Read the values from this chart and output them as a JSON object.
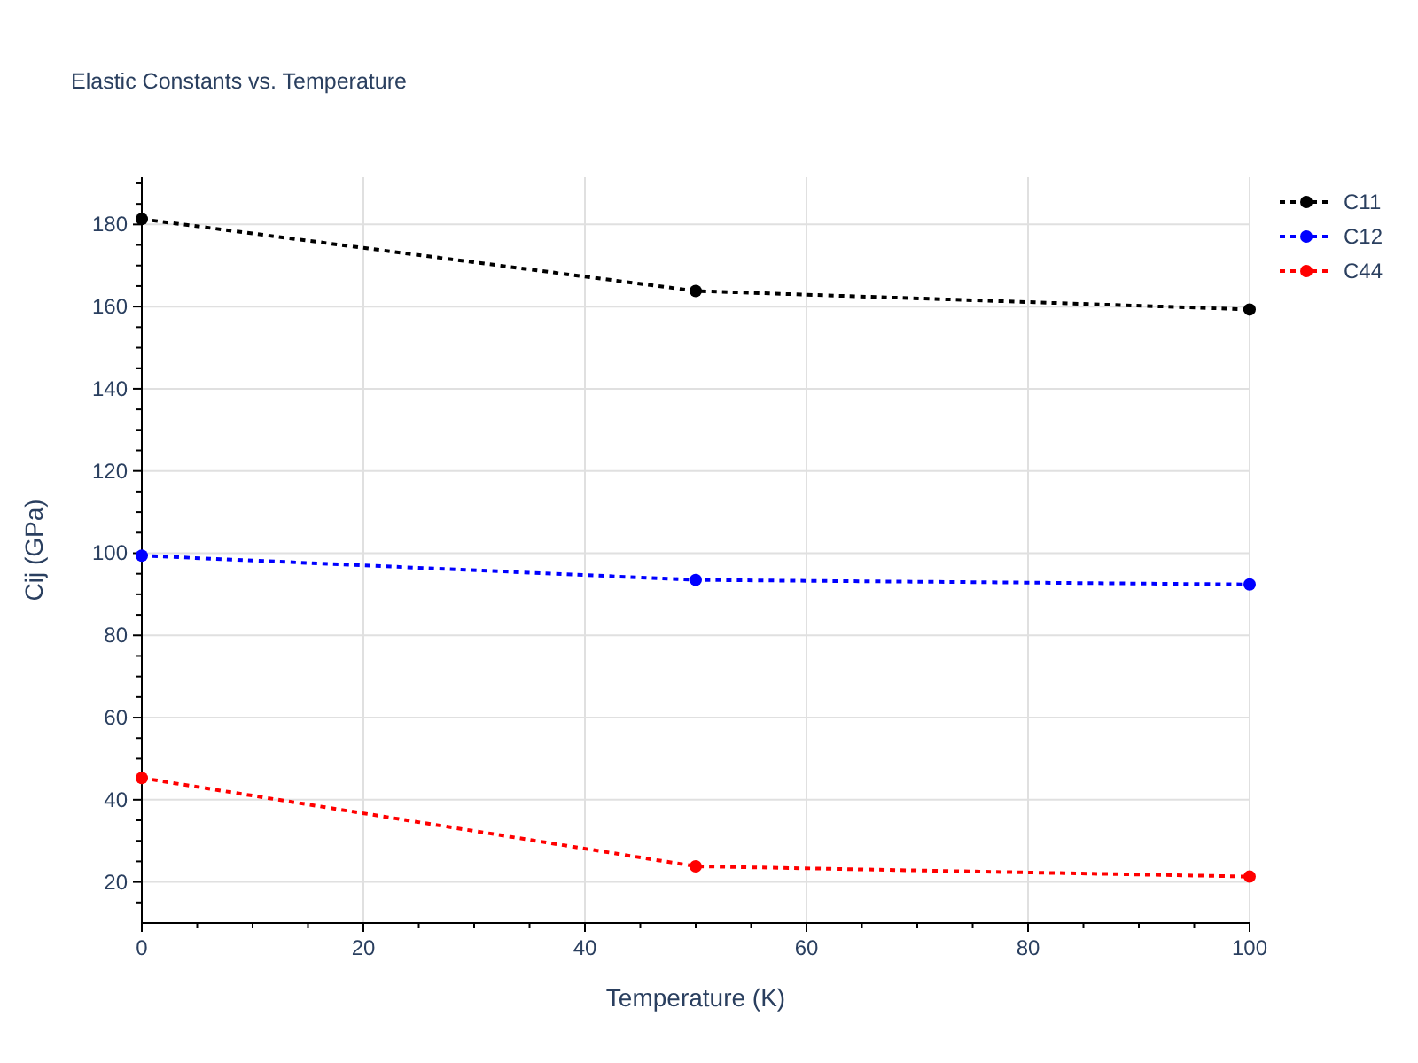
{
  "chart_data": {
    "type": "line",
    "title": "Elastic Constants vs. Temperature",
    "xlabel": "Temperature (K)",
    "ylabel": "Cij (GPa)",
    "x": [
      0,
      50,
      100
    ],
    "series": [
      {
        "name": "C11",
        "color": "#000000",
        "values": [
          181.3,
          163.8,
          159.3
        ]
      },
      {
        "name": "C12",
        "color": "#0000ff",
        "values": [
          99.4,
          93.5,
          92.4
        ]
      },
      {
        "name": "C44",
        "color": "#ff0000",
        "values": [
          45.3,
          23.8,
          21.3
        ]
      }
    ],
    "xlim": [
      0,
      100
    ],
    "xticks": [
      0,
      {
        "value": 5,
        "label": null
      },
      {
        "value": 10,
        "label": null
      },
      {
        "value": 15,
        "label": null
      },
      20,
      {
        "value": 25,
        "label": null
      },
      {
        "value": 30,
        "label": null
      },
      {
        "value": 35,
        "label": null
      },
      40,
      {
        "value": 45,
        "label": null
      },
      {
        "value": 50,
        "label": null
      },
      {
        "value": 55,
        "label": null
      },
      60,
      {
        "value": 65,
        "label": null
      },
      {
        "value": 70,
        "label": null
      },
      {
        "value": 75,
        "label": null
      },
      80,
      {
        "value": 85,
        "label": null
      },
      {
        "value": 90,
        "label": null
      },
      {
        "value": 95,
        "label": null
      },
      100
    ],
    "ylim": [
      10,
      191.5
    ],
    "yticks": [
      {
        "value": 15,
        "label": null
      },
      20,
      {
        "value": 25,
        "label": null
      },
      {
        "value": 30,
        "label": null
      },
      {
        "value": 35,
        "label": null
      },
      40,
      {
        "value": 45,
        "label": null
      },
      {
        "value": 50,
        "label": null
      },
      {
        "value": 55,
        "label": null
      },
      60,
      {
        "value": 65,
        "label": null
      },
      {
        "value": 70,
        "label": null
      },
      {
        "value": 75,
        "label": null
      },
      80,
      {
        "value": 85,
        "label": null
      },
      {
        "value": 90,
        "label": null
      },
      {
        "value": 95,
        "label": null
      },
      100,
      {
        "value": 105,
        "label": null
      },
      {
        "value": 110,
        "label": null
      },
      {
        "value": 115,
        "label": null
      },
      120,
      {
        "value": 125,
        "label": null
      },
      {
        "value": 130,
        "label": null
      },
      {
        "value": 135,
        "label": null
      },
      140,
      {
        "value": 145,
        "label": null
      },
      {
        "value": 150,
        "label": null
      },
      {
        "value": 155,
        "label": null
      },
      160,
      {
        "value": 165,
        "label": null
      },
      {
        "value": 170,
        "label": null
      },
      {
        "value": 175,
        "label": null
      },
      180,
      {
        "value": 185,
        "label": null
      },
      {
        "value": 190,
        "label": null
      }
    ],
    "grid": true,
    "legend": "top right",
    "marker": "circle",
    "line_style": "dotted"
  }
}
